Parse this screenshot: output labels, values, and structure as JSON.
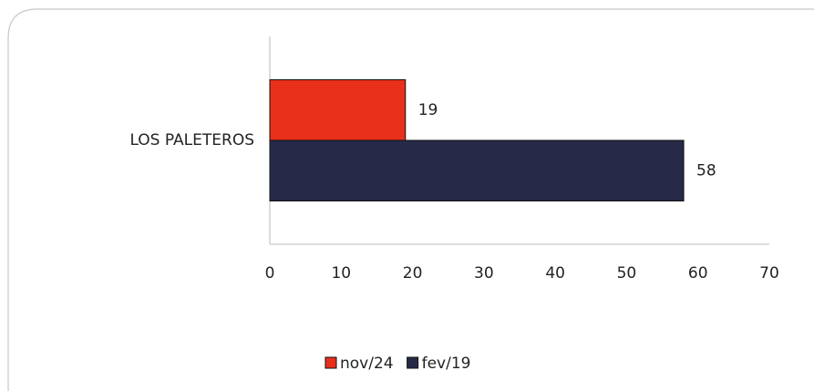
{
  "chart_data": {
    "type": "hbar",
    "categories": [
      "LOS PALETEROS"
    ],
    "series": [
      {
        "name": "nov/24",
        "color": "#e8301a",
        "values": [
          19
        ]
      },
      {
        "name": "fev/19",
        "color": "#262a48",
        "values": [
          58
        ]
      }
    ],
    "xlim": [
      0,
      70
    ],
    "xticks": [
      0,
      10,
      20,
      30,
      40,
      50,
      60,
      70
    ],
    "grid": false,
    "legend": "bottom"
  }
}
